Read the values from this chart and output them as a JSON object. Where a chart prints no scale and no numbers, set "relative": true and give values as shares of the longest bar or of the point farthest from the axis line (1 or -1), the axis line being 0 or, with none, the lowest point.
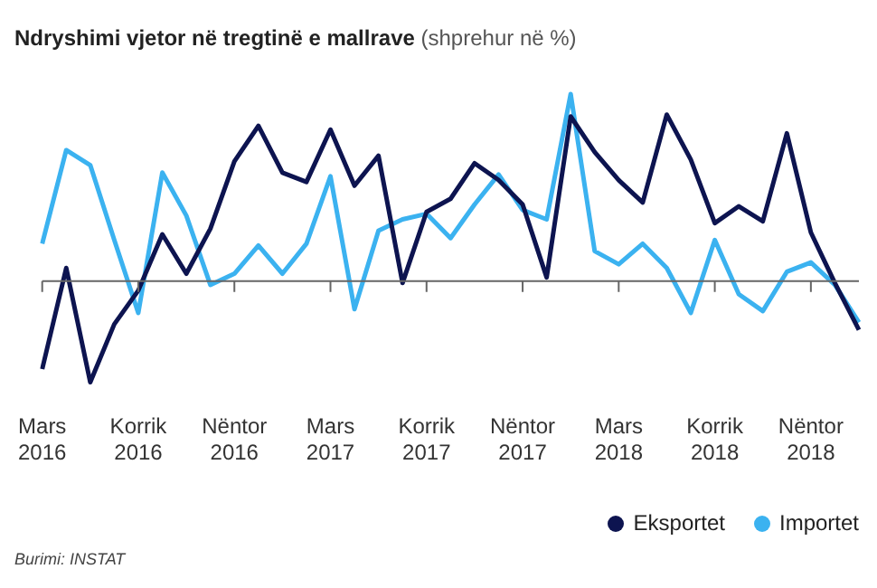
{
  "chart_data": {
    "type": "line",
    "title": "Ndryshimi vjetor në tregtinë e mallrave",
    "subtitle": "(shprehur në %)",
    "relative": true,
    "marker": "none",
    "legend": "bottom right",
    "grid": false,
    "categories": [
      "Mars 2016",
      null,
      null,
      null,
      "Korrik 2016",
      null,
      null,
      null,
      "Nëntor 2016",
      null,
      null,
      null,
      "Mars 2017",
      null,
      null,
      null,
      "Korrik 2017",
      null,
      null,
      null,
      "Nëntor 2017",
      null,
      null,
      null,
      "Mars 2018",
      null,
      null,
      null,
      "Korrik 2018",
      null,
      null,
      null,
      "Nëntor 2018",
      null,
      null
    ],
    "series": [
      {
        "name": "Eksportet",
        "color": "#0d1450",
        "values": [
          -0.47,
          0.07,
          -0.54,
          -0.23,
          -0.05,
          0.25,
          0.04,
          0.28,
          0.64,
          0.83,
          0.58,
          0.53,
          0.81,
          0.51,
          0.67,
          -0.01,
          0.37,
          0.44,
          0.63,
          0.54,
          0.41,
          0.02,
          0.88,
          0.69,
          0.54,
          0.42,
          0.89,
          0.65,
          0.31,
          0.4,
          0.32,
          0.79,
          0.26,
          -0.01,
          -0.26
        ]
      },
      {
        "name": "Importet",
        "color": "#3bb2f0",
        "values": [
          0.2,
          0.7,
          0.62,
          0.22,
          -0.17,
          0.58,
          0.35,
          -0.02,
          0.04,
          0.19,
          0.04,
          0.2,
          0.56,
          -0.15,
          0.27,
          0.33,
          0.36,
          0.23,
          0.41,
          0.57,
          0.38,
          0.33,
          1.0,
          0.16,
          0.09,
          0.2,
          0.07,
          -0.17,
          0.22,
          -0.07,
          -0.16,
          0.05,
          0.1,
          -0.02,
          -0.22
        ]
      }
    ],
    "annotations": [
      "Burimi: INSTAT"
    ]
  }
}
